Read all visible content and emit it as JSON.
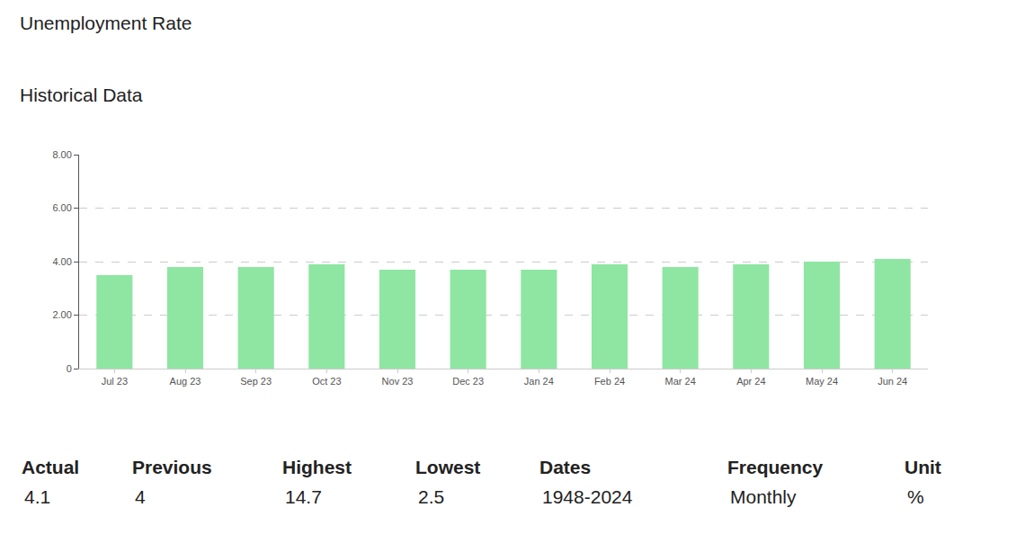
{
  "chart_data": {
    "type": "bar",
    "title": "Unemployment Rate",
    "subtitle": "Historical Data",
    "categories": [
      "Jul 23",
      "Aug 23",
      "Sep 23",
      "Oct 23",
      "Nov 23",
      "Dec 23",
      "Jan 24",
      "Feb 24",
      "Mar 24",
      "Apr 24",
      "May 24",
      "Jun 24"
    ],
    "values": [
      3.5,
      3.8,
      3.8,
      3.9,
      3.7,
      3.7,
      3.7,
      3.9,
      3.8,
      3.9,
      4.0,
      4.1
    ],
    "color": "#8ee6a2",
    "ylim": [
      0,
      8
    ],
    "yticks": [
      0,
      {
        "value": 2,
        "label": "2.00"
      },
      {
        "value": 4,
        "label": "4.00"
      },
      {
        "value": 6,
        "label": "6.00"
      },
      {
        "value": 8,
        "label": "8.00"
      }
    ],
    "grid": true
  },
  "summary": [
    {
      "label": "Actual",
      "value": 4.1
    },
    {
      "label": "Previous",
      "value": 4
    },
    {
      "label": "Highest",
      "value": 14.7
    },
    {
      "label": "Lowest",
      "value": 2.5
    },
    {
      "label": "Dates",
      "value": "1948-2024"
    },
    {
      "label": "Frequency",
      "value": "Monthly"
    },
    {
      "label": "Unit",
      "value": "%"
    }
  ]
}
